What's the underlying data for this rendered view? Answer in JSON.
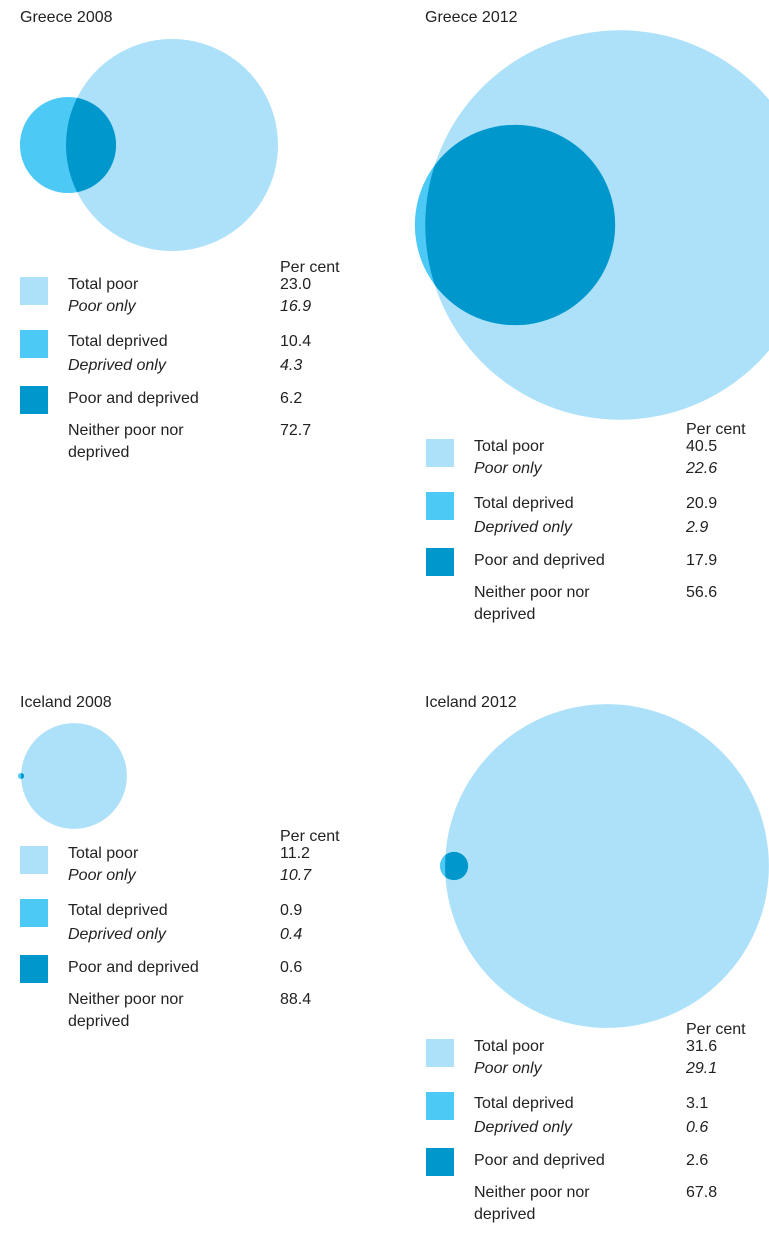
{
  "panels": [
    {
      "title": "Greece 2008",
      "legend_header": "Per cent",
      "items": [
        {
          "label": "Total poor",
          "value": 23.0,
          "value_label": "23.0",
          "color": "#ade1f9"
        },
        {
          "label": "Poor only",
          "value": 16.9,
          "italic": true
        },
        {
          "label": "Total deprived",
          "value": 10.4,
          "color": "#4cc9f5"
        },
        {
          "label": "Deprived only",
          "value": 4.3,
          "italic": true
        },
        {
          "label": "Poor and deprived",
          "value": 6.2,
          "color": "#0097cc"
        },
        {
          "label": "Neither poor nor deprived",
          "value": 72.7
        }
      ]
    },
    {
      "title": "Greece 2012",
      "legend_header": "Per cent",
      "items": [
        {
          "label": "Total poor",
          "value": 40.5,
          "color": "#ade1f9"
        },
        {
          "label": "Poor only",
          "value": 22.6,
          "italic": true
        },
        {
          "label": "Total deprived",
          "value": 20.9,
          "color": "#4cc9f5"
        },
        {
          "label": "Deprived only",
          "value": 2.9,
          "italic": true
        },
        {
          "label": "Poor and deprived",
          "value": 17.9,
          "color": "#0097cc"
        },
        {
          "label": "Neither poor nor deprived",
          "value": 56.6
        }
      ]
    },
    {
      "title": "Iceland 2008",
      "legend_header": "Per cent",
      "items": [
        {
          "label": "Total poor",
          "value": 11.2,
          "color": "#ade1f9"
        },
        {
          "label": "Poor only",
          "value": 10.7,
          "italic": true
        },
        {
          "label": "Total deprived",
          "value": 0.9,
          "color": "#4cc9f5"
        },
        {
          "label": "Deprived only",
          "value": 0.4,
          "italic": true
        },
        {
          "label": "Poor and deprived",
          "value": 0.6,
          "color": "#0097cc"
        },
        {
          "label": "Neither poor nor deprived",
          "value": 88.4
        }
      ]
    },
    {
      "title": "Iceland 2012",
      "legend_header": "Per cent",
      "items": [
        {
          "label": "Total poor",
          "value": 31.6,
          "color": "#ade1f9"
        },
        {
          "label": "Poor only",
          "value": 29.1,
          "italic": true
        },
        {
          "label": "Total deprived",
          "value": 3.1,
          "color": "#4cc9f5"
        },
        {
          "label": "Deprived only",
          "value": 0.6,
          "italic": true
        },
        {
          "label": "Poor and deprived",
          "value": 2.6,
          "color": "#0097cc"
        },
        {
          "label": "Neither poor nor deprived",
          "value": 67.8
        }
      ]
    }
  ]
}
